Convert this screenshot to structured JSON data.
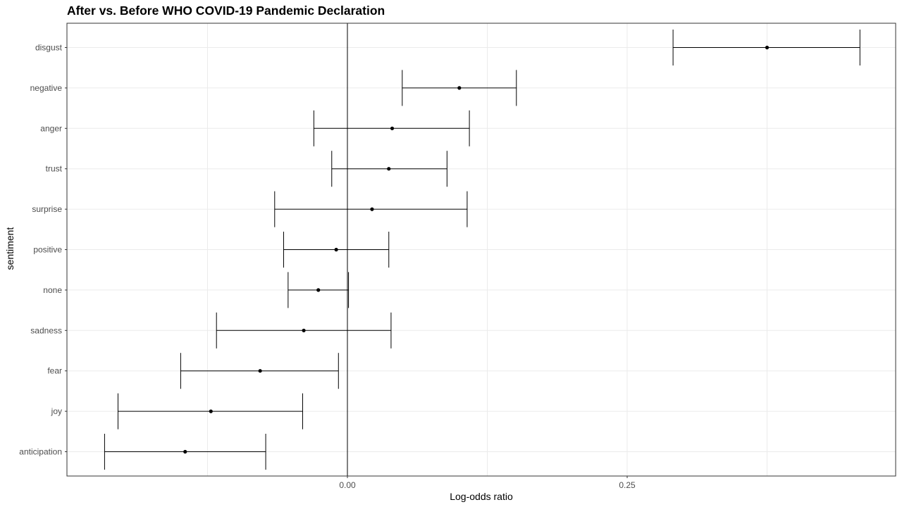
{
  "chart_data": {
    "type": "errorbar",
    "title": "After vs. Before WHO COVID-19 Pandemic Declaration",
    "xlabel": "Log-odds ratio",
    "ylabel": "sentiment",
    "xlim": [
      -0.25,
      0.49
    ],
    "x_ticks": [
      0.0,
      0.25
    ],
    "x_tick_labels": [
      "0.00",
      "0.25"
    ],
    "grid": true,
    "reference_line_x": 0,
    "categories": [
      "disgust",
      "negative",
      "anger",
      "trust",
      "surprise",
      "positive",
      "none",
      "sadness",
      "fear",
      "joy",
      "anticipation"
    ],
    "points": [
      {
        "label": "disgust",
        "estimate": 0.375,
        "low": 0.291,
        "high": 0.458
      },
      {
        "label": "negative",
        "estimate": 0.1,
        "low": 0.049,
        "high": 0.151
      },
      {
        "label": "anger",
        "estimate": 0.04,
        "low": -0.03,
        "high": 0.109
      },
      {
        "label": "trust",
        "estimate": 0.037,
        "low": -0.014,
        "high": 0.089
      },
      {
        "label": "surprise",
        "estimate": 0.022,
        "low": -0.065,
        "high": 0.107
      },
      {
        "label": "positive",
        "estimate": -0.01,
        "low": -0.057,
        "high": 0.037
      },
      {
        "label": "none",
        "estimate": -0.026,
        "low": -0.053,
        "high": 0.001
      },
      {
        "label": "sadness",
        "estimate": -0.039,
        "low": -0.117,
        "high": 0.039
      },
      {
        "label": "fear",
        "estimate": -0.078,
        "low": -0.149,
        "high": -0.008
      },
      {
        "label": "joy",
        "estimate": -0.122,
        "low": -0.205,
        "high": -0.04
      },
      {
        "label": "anticipation",
        "estimate": -0.145,
        "low": -0.217,
        "high": -0.073
      }
    ]
  }
}
